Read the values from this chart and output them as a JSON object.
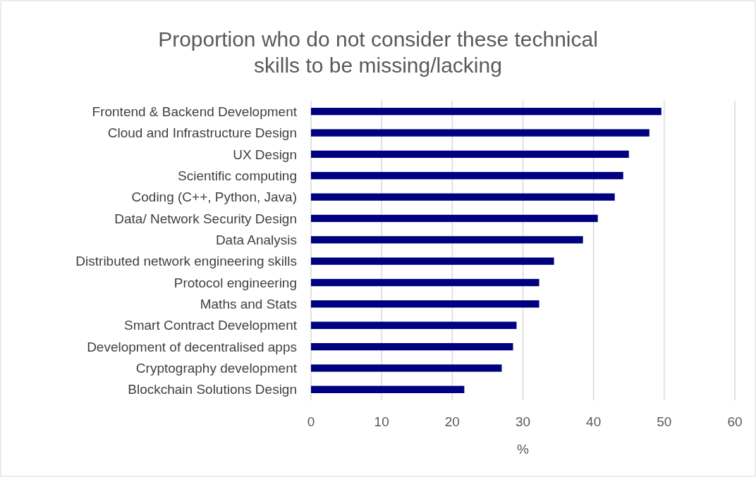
{
  "chart_data": {
    "type": "bar",
    "orientation": "horizontal",
    "title": "Proportion who do not consider these technical skills to be missing/lacking",
    "categories": [
      "Frontend & Backend Development",
      "Cloud and Infrastructure Design",
      "UX Design",
      "Scientific computing",
      "Coding (C++, Python, Java)",
      "Data/ Network Security Design",
      "Data Analysis",
      "Distributed network engineering skills",
      "Protocol engineering",
      "Maths and Stats",
      "Smart Contract Development",
      "Development of decentralised apps",
      "Cryptography development",
      "Blockchain Solutions Design"
    ],
    "values": [
      49.6,
      47.9,
      45.0,
      44.2,
      43.0,
      40.6,
      38.5,
      34.4,
      32.3,
      32.3,
      29.1,
      28.6,
      27.0,
      21.7
    ],
    "color": "#000080",
    "xlabel": "%",
    "xlim": [
      0,
      60
    ],
    "xticks": [
      0,
      10,
      20,
      30,
      40,
      50,
      60
    ],
    "grid": "x"
  }
}
